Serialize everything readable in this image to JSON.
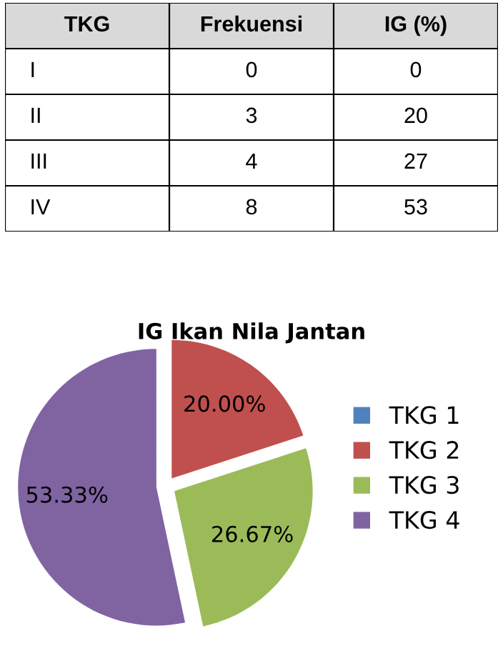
{
  "chart_data": [
    {
      "type": "other",
      "xlabel": "TKG",
      "data_labels": true,
      "categories": [
        "I",
        "II",
        "III",
        "IV"
      ],
      "series": [
        {
          "name": "Frekuensi",
          "values": [
            0,
            3,
            4,
            8
          ]
        },
        {
          "name": "IG (%)",
          "values": [
            0,
            20,
            27,
            53
          ]
        }
      ]
    },
    {
      "type": "pie",
      "title": "IG Ikan Nila Jantan",
      "categories": [
        "TKG 1",
        "TKG 2",
        "TKG 3",
        "TKG 4"
      ],
      "values": [
        0,
        20,
        26.67,
        53.33
      ],
      "colors": [
        "#4f81bd",
        "#c0504d",
        "#9bbb59",
        "#8064a2"
      ],
      "value_labels": [
        null,
        "20.00%",
        "26.67%",
        "53.33%"
      ],
      "legend": "right"
    }
  ]
}
